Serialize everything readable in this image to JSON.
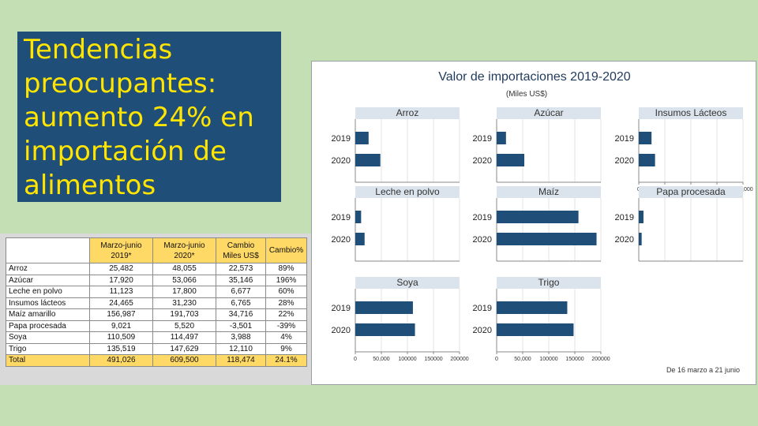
{
  "slide": {
    "title_lines": [
      "Tendencias",
      "preocupantes:",
      "aumento 24% en",
      "importación de",
      "alimentos"
    ],
    "colors": {
      "title_bg": "#1f4e79",
      "title_text": "#ffe500",
      "background": "#c5dfb4",
      "table_header": "#ffd966",
      "bar": "#1f4e79"
    }
  },
  "table": {
    "headers": [
      "",
      "Marzo-junio\n2019*",
      "Marzo-junio\n2020*",
      "Cambio\nMiles US$",
      "Cambio%"
    ],
    "rows": [
      [
        "Arroz",
        "25,482",
        "48,055",
        "22,573",
        "89%"
      ],
      [
        "Azúcar",
        "17,920",
        "53,066",
        "35,146",
        "196%"
      ],
      [
        "Leche en polvo",
        "11,123",
        "17,800",
        "6,677",
        "60%"
      ],
      [
        "Insumos lácteos",
        "24,465",
        "31,230",
        "6,765",
        "28%"
      ],
      [
        "Maíz amarillo",
        "156,987",
        "191,703",
        "34,716",
        "22%"
      ],
      [
        "Papa procesada",
        "9,021",
        "5,520",
        "-3,501",
        "-39%"
      ],
      [
        "Soya",
        "110,509",
        "114,497",
        "3,988",
        "4%"
      ],
      [
        "Trigo",
        "135,519",
        "147,629",
        "12,110",
        "9%"
      ]
    ],
    "total": [
      "Total",
      "491,026",
      "609,500",
      "118,474",
      "24.1%"
    ]
  },
  "chart_data": {
    "type": "bar",
    "orientation": "horizontal",
    "title": "Valor de importaciones 2019-2020",
    "subtitle": "(Miles US$)",
    "note": "De 16 marzo a 21 junio",
    "categories": [
      "2019",
      "2020"
    ],
    "xlim": [
      0,
      200000
    ],
    "x_ticks": [
      0,
      50000,
      100000,
      150000,
      200000
    ],
    "x_tick_labels_row1": [
      "0",
      "50,000",
      "100,000",
      "150,000",
      "200,000"
    ],
    "x_tick_labels_row3": [
      "0",
      "50,000",
      "100000",
      "150000",
      "200000"
    ],
    "panels": [
      {
        "name": "Arroz",
        "values": [
          25482,
          48055
        ]
      },
      {
        "name": "Azúcar",
        "values": [
          17920,
          53066
        ]
      },
      {
        "name": "Insumos Lácteos",
        "values": [
          24465,
          31230
        ]
      },
      {
        "name": "Leche en polvo",
        "values": [
          11123,
          17800
        ]
      },
      {
        "name": "Maíz",
        "values": [
          156987,
          191703
        ]
      },
      {
        "name": "Papa procesada",
        "values": [
          9021,
          5520
        ]
      },
      {
        "name": "Soya",
        "values": [
          110509,
          114497
        ]
      },
      {
        "name": "Trigo",
        "values": [
          135519,
          147629
        ]
      }
    ]
  }
}
